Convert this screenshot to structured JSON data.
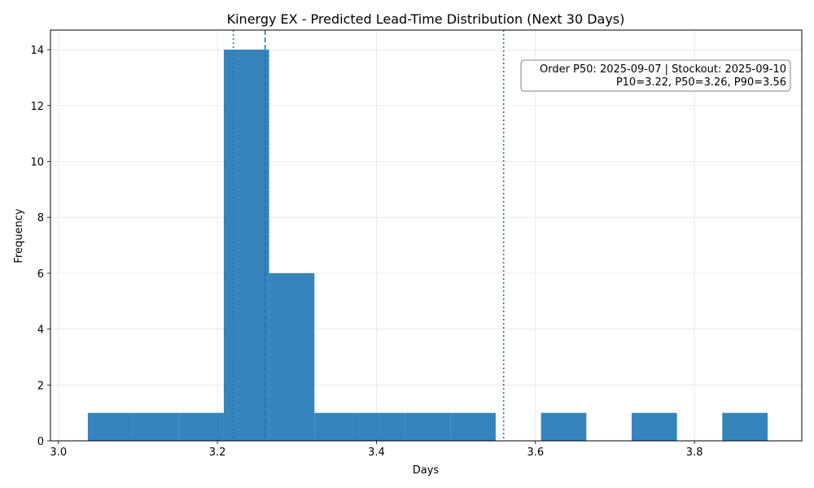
{
  "chart_data": {
    "type": "bar",
    "title": "Kinergy EX - Predicted Lead-Time Distribution (Next 30 Days)",
    "xlabel": "Days",
    "ylabel": "Frequency",
    "xlim": [
      2.99,
      3.935
    ],
    "ylim": [
      0,
      14.7
    ],
    "xticks": [
      "3.0",
      "3.2",
      "3.4",
      "3.6",
      "3.8"
    ],
    "xtick_values": [
      3.0,
      3.2,
      3.4,
      3.6,
      3.8
    ],
    "yticks": [
      "0",
      "2",
      "4",
      "6",
      "8",
      "10",
      "12",
      "14"
    ],
    "ytick_values": [
      0,
      2,
      4,
      6,
      8,
      10,
      12,
      14
    ],
    "grid": true,
    "bar_color": "#1f77b4",
    "bins": [
      {
        "start": 3.037,
        "end": 3.094,
        "count": 1
      },
      {
        "start": 3.094,
        "end": 3.151,
        "count": 1
      },
      {
        "start": 3.151,
        "end": 3.208,
        "count": 1
      },
      {
        "start": 3.208,
        "end": 3.265,
        "count": 14
      },
      {
        "start": 3.265,
        "end": 3.322,
        "count": 6
      },
      {
        "start": 3.322,
        "end": 3.379,
        "count": 1
      },
      {
        "start": 3.379,
        "end": 3.436,
        "count": 1
      },
      {
        "start": 3.436,
        "end": 3.493,
        "count": 1
      },
      {
        "start": 3.493,
        "end": 3.55,
        "count": 1
      },
      {
        "start": 3.55,
        "end": 3.607,
        "count": 0
      },
      {
        "start": 3.607,
        "end": 3.664,
        "count": 1
      },
      {
        "start": 3.664,
        "end": 3.721,
        "count": 0
      },
      {
        "start": 3.721,
        "end": 3.778,
        "count": 1
      },
      {
        "start": 3.778,
        "end": 3.835,
        "count": 0
      },
      {
        "start": 3.835,
        "end": 3.892,
        "count": 1
      }
    ],
    "reference_lines": [
      {
        "name": "P10",
        "x": 3.22,
        "style": "dotted"
      },
      {
        "name": "P50",
        "x": 3.26,
        "style": "dashed"
      },
      {
        "name": "P90",
        "x": 3.56,
        "style": "dotted"
      }
    ],
    "annotation": {
      "line1": "Order P50: 2025-09-07 | Stockout: 2025-09-10",
      "line2": "P10=3.22, P50=3.26, P90=3.56",
      "placement": "top-right"
    }
  }
}
